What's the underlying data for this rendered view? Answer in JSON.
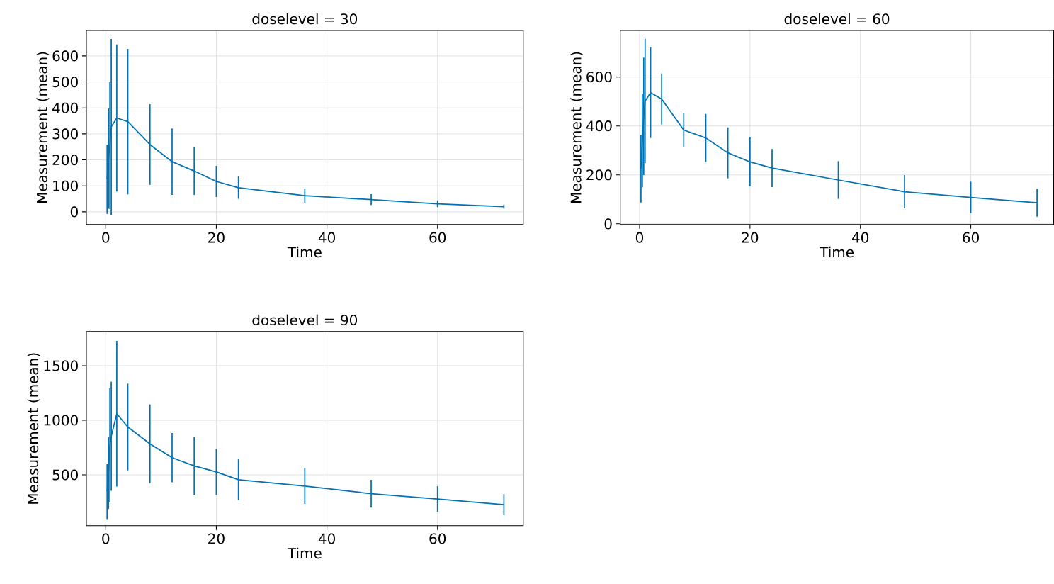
{
  "chart_data": [
    {
      "type": "line",
      "title": "doselevel = 30",
      "xlabel": "Time",
      "ylabel": "Measurement (mean)",
      "color": "#0072b2",
      "grid": true,
      "x": [
        0.25,
        0.5,
        0.75,
        1,
        2,
        4,
        8,
        12,
        16,
        20,
        24,
        36,
        48,
        60,
        72
      ],
      "values": [
        125,
        205,
        255,
        327,
        361,
        347,
        259,
        193,
        157,
        117,
        93,
        62,
        47,
        31,
        20
      ],
      "errors": [
        133,
        193,
        244,
        338,
        283,
        280,
        155,
        128,
        92,
        60,
        43,
        27,
        21,
        13,
        8
      ],
      "xlim": [
        -3.5,
        75.5
      ],
      "ylim": [
        -49,
        698
      ],
      "xticks": [
        0,
        20,
        40,
        60
      ],
      "yticks": [
        0,
        100,
        200,
        300,
        400,
        500,
        600
      ]
    },
    {
      "type": "line",
      "title": "doselevel = 60",
      "xlabel": "Time",
      "ylabel": "Measurement (mean)",
      "color": "#0072b2",
      "grid": true,
      "x": [
        0.25,
        0.5,
        0.75,
        1,
        2,
        4,
        8,
        12,
        16,
        20,
        24,
        36,
        48,
        60,
        72
      ],
      "values": [
        225,
        340,
        439,
        502,
        536,
        510,
        383,
        351,
        290,
        253,
        228,
        179,
        131,
        108,
        86
      ],
      "errors": [
        138,
        191,
        240,
        254,
        185,
        104,
        70,
        98,
        104,
        100,
        78,
        77,
        68,
        64,
        57
      ],
      "xlim": [
        -3.5,
        75
      ],
      "ylim": [
        -3,
        790
      ],
      "xticks": [
        0,
        20,
        40,
        60
      ],
      "yticks": [
        0,
        200,
        400,
        600
      ]
    },
    {
      "type": "line",
      "title": "doselevel = 90",
      "xlabel": "Time",
      "ylabel": "Measurement (mean)",
      "color": "#0072b2",
      "grid": true,
      "x": [
        0.25,
        0.5,
        0.75,
        1,
        2,
        4,
        8,
        12,
        16,
        20,
        24,
        36,
        48,
        60,
        72
      ],
      "values": [
        346,
        517,
        770,
        853,
        1060,
        938,
        784,
        657,
        582,
        527,
        455,
        397,
        327,
        278,
        226
      ],
      "errors": [
        252,
        330,
        523,
        500,
        668,
        397,
        361,
        226,
        264,
        210,
        187,
        165,
        127,
        117,
        97
      ],
      "xlim": [
        -3.5,
        75.5
      ],
      "ylim": [
        34,
        1813
      ],
      "xticks": [
        0,
        20,
        40,
        60
      ],
      "yticks": [
        500,
        1000,
        1500
      ]
    }
  ]
}
